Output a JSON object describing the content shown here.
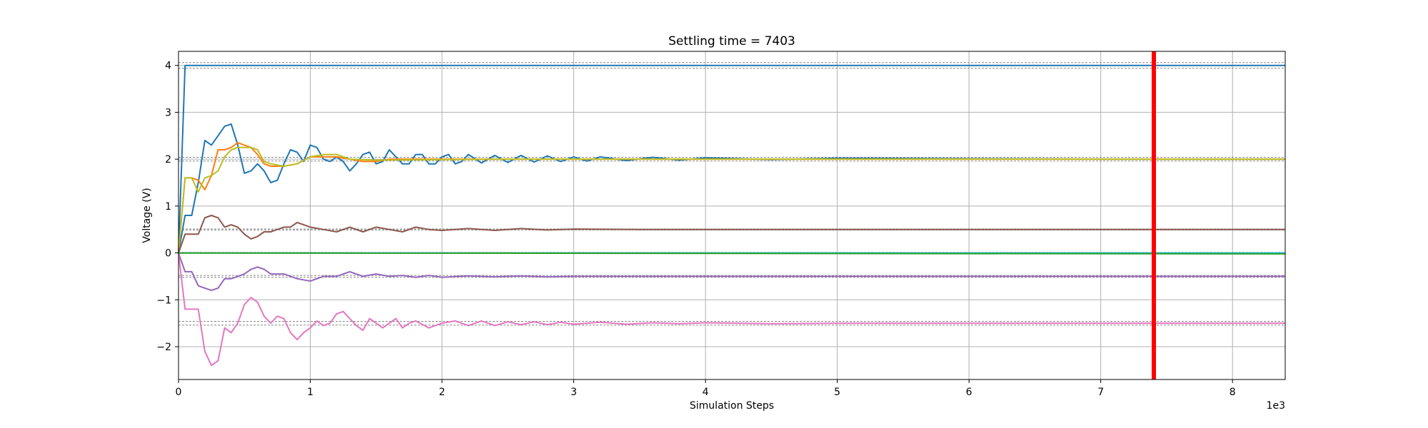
{
  "chart_data": {
    "type": "line",
    "title": "Settling time = 7403",
    "xlabel": "Simulation Steps",
    "ylabel": "Voltage (V)",
    "x_offset_label": "1e3",
    "xlim": [
      0,
      8.4
    ],
    "ylim": [
      -2.7,
      4.3
    ],
    "xticks": [
      0,
      1,
      2,
      3,
      4,
      5,
      6,
      7,
      8
    ],
    "yticks": [
      -2,
      -1,
      0,
      1,
      2,
      3,
      4
    ],
    "grid": true,
    "settling_time": 7403,
    "settling_marker_x": 7.403,
    "settling_marker_color": "#ff0000",
    "reference_bands": [
      {
        "center": 4,
        "band": 0.06
      },
      {
        "center": 2,
        "band": 0.04
      },
      {
        "center": 0.5,
        "band": 0.01
      },
      {
        "center": 0,
        "band": 0.01
      },
      {
        "center": -0.5,
        "band": 0.02
      },
      {
        "center": -1.5,
        "band": 0.04
      }
    ],
    "series": [
      {
        "color": "#1f77b4",
        "x": [
          0,
          0.05,
          0.1,
          0.6,
          2,
          8.4
        ],
        "y": [
          0,
          4,
          4,
          4,
          4,
          4
        ]
      },
      {
        "color": "#1f77b4",
        "x": [
          0,
          0.05,
          0.1,
          0.15,
          0.2,
          0.25,
          0.3,
          0.35,
          0.4,
          0.45,
          0.5,
          0.55,
          0.6,
          0.65,
          0.7,
          0.75,
          0.8,
          0.85,
          0.9,
          0.95,
          1.0,
          1.05,
          1.1,
          1.15,
          1.2,
          1.25,
          1.3,
          1.35,
          1.4,
          1.45,
          1.5,
          1.55,
          1.6,
          1.65,
          1.7,
          1.75,
          1.8,
          1.85,
          1.9,
          1.95,
          2.0,
          2.05,
          2.1,
          2.15,
          2.2,
          2.3,
          2.4,
          2.5,
          2.6,
          2.7,
          2.8,
          2.9,
          3.0,
          3.1,
          3.2,
          3.4,
          3.6,
          3.8,
          4.0,
          4.5,
          5.0,
          6.0,
          7.0,
          8.4
        ],
        "y": [
          0,
          0.8,
          0.8,
          1.5,
          2.4,
          2.3,
          2.5,
          2.7,
          2.75,
          2.3,
          1.7,
          1.75,
          1.9,
          1.75,
          1.5,
          1.55,
          1.9,
          2.2,
          2.15,
          1.95,
          2.3,
          2.25,
          2.0,
          1.95,
          2.05,
          1.95,
          1.75,
          1.9,
          2.1,
          2.15,
          1.9,
          1.95,
          2.2,
          2.05,
          1.9,
          1.9,
          2.1,
          2.1,
          1.9,
          1.9,
          2.05,
          2.1,
          1.9,
          1.95,
          2.1,
          1.92,
          2.08,
          1.93,
          2.08,
          1.94,
          2.07,
          1.95,
          2.05,
          1.96,
          2.05,
          1.97,
          2.04,
          1.98,
          2.03,
          1.99,
          2.02,
          2.01,
          2.0,
          2.0
        ]
      },
      {
        "color": "#ff7f0e",
        "x": [
          0,
          0.05,
          0.1,
          0.15,
          0.2,
          0.25,
          0.3,
          0.35,
          0.4,
          0.45,
          0.5,
          0.55,
          0.6,
          0.65,
          0.7,
          0.8,
          0.9,
          1.0,
          1.05,
          1.1,
          1.2,
          1.3,
          1.4,
          1.5,
          1.6,
          1.8,
          2.0,
          2.5,
          3.0,
          4.0,
          5.0,
          6.0,
          7.0,
          8.4
        ],
        "y": [
          0,
          1.6,
          1.6,
          1.55,
          1.35,
          1.65,
          2.2,
          2.2,
          2.25,
          2.35,
          2.3,
          2.25,
          2.1,
          1.9,
          1.85,
          1.85,
          1.9,
          2.05,
          2.05,
          2.05,
          2.05,
          2.0,
          1.95,
          1.95,
          2.0,
          2.0,
          2.0,
          2.0,
          2.0,
          2.0,
          2.0,
          2.0,
          2.0,
          2.0
        ]
      },
      {
        "color": "#bcbd22",
        "x": [
          0,
          0.05,
          0.1,
          0.15,
          0.2,
          0.25,
          0.3,
          0.35,
          0.4,
          0.45,
          0.5,
          0.55,
          0.6,
          0.65,
          0.7,
          0.8,
          0.9,
          1.0,
          1.1,
          1.2,
          1.3,
          1.5,
          2.0,
          2.5,
          3.0,
          4.0,
          5.0,
          6.0,
          7.0,
          8.4
        ],
        "y": [
          0,
          1.6,
          1.6,
          1.3,
          1.6,
          1.65,
          1.75,
          2.05,
          2.2,
          2.25,
          2.25,
          2.25,
          2.2,
          1.95,
          1.9,
          1.85,
          1.9,
          2.05,
          2.1,
          2.1,
          2.0,
          1.98,
          1.99,
          2.0,
          2.0,
          2.0,
          2.0,
          2.0,
          2.0,
          2.0
        ]
      },
      {
        "color": "#8c564b",
        "x": [
          0,
          0.05,
          0.1,
          0.15,
          0.2,
          0.25,
          0.3,
          0.35,
          0.4,
          0.45,
          0.5,
          0.55,
          0.6,
          0.65,
          0.7,
          0.75,
          0.8,
          0.85,
          0.9,
          0.95,
          1.0,
          1.1,
          1.2,
          1.3,
          1.4,
          1.5,
          1.6,
          1.7,
          1.8,
          1.9,
          2.0,
          2.2,
          2.4,
          2.6,
          2.8,
          3.0,
          3.5,
          4.0,
          5.0,
          6.0,
          7.0,
          8.4
        ],
        "y": [
          0,
          0.4,
          0.4,
          0.4,
          0.75,
          0.8,
          0.75,
          0.55,
          0.6,
          0.55,
          0.4,
          0.3,
          0.35,
          0.45,
          0.45,
          0.5,
          0.55,
          0.55,
          0.65,
          0.6,
          0.55,
          0.5,
          0.45,
          0.55,
          0.45,
          0.55,
          0.5,
          0.45,
          0.55,
          0.5,
          0.48,
          0.52,
          0.48,
          0.52,
          0.49,
          0.51,
          0.5,
          0.5,
          0.5,
          0.5,
          0.5,
          0.5
        ]
      },
      {
        "color": "#9467bd",
        "x": [
          0,
          0.05,
          0.1,
          0.15,
          0.2,
          0.25,
          0.3,
          0.35,
          0.4,
          0.45,
          0.5,
          0.55,
          0.6,
          0.65,
          0.7,
          0.8,
          0.9,
          1.0,
          1.1,
          1.2,
          1.3,
          1.4,
          1.5,
          1.6,
          1.7,
          1.8,
          1.9,
          2.0,
          2.2,
          2.4,
          2.6,
          2.8,
          3.0,
          3.5,
          4.0,
          5.0,
          6.0,
          7.0,
          8.4
        ],
        "y": [
          0,
          -0.4,
          -0.4,
          -0.7,
          -0.75,
          -0.8,
          -0.75,
          -0.55,
          -0.55,
          -0.5,
          -0.45,
          -0.35,
          -0.3,
          -0.35,
          -0.45,
          -0.45,
          -0.55,
          -0.6,
          -0.5,
          -0.5,
          -0.4,
          -0.5,
          -0.45,
          -0.5,
          -0.48,
          -0.52,
          -0.48,
          -0.52,
          -0.49,
          -0.51,
          -0.49,
          -0.51,
          -0.5,
          -0.5,
          -0.5,
          -0.5,
          -0.5,
          -0.5,
          -0.5
        ]
      },
      {
        "color": "#e377c2",
        "x": [
          0,
          0.05,
          0.1,
          0.15,
          0.2,
          0.25,
          0.3,
          0.35,
          0.4,
          0.45,
          0.5,
          0.55,
          0.6,
          0.65,
          0.7,
          0.75,
          0.8,
          0.85,
          0.9,
          0.95,
          1.0,
          1.05,
          1.1,
          1.15,
          1.2,
          1.25,
          1.3,
          1.35,
          1.4,
          1.45,
          1.5,
          1.55,
          1.6,
          1.65,
          1.7,
          1.75,
          1.8,
          1.9,
          2.0,
          2.1,
          2.2,
          2.3,
          2.4,
          2.5,
          2.6,
          2.7,
          2.8,
          2.9,
          3.0,
          3.2,
          3.4,
          3.6,
          3.8,
          4.0,
          4.5,
          5.0,
          6.0,
          7.0,
          8.4
        ],
        "y": [
          0,
          -1.2,
          -1.2,
          -1.2,
          -2.1,
          -2.4,
          -2.3,
          -1.6,
          -1.7,
          -1.5,
          -1.1,
          -0.95,
          -1.05,
          -1.35,
          -1.5,
          -1.35,
          -1.4,
          -1.7,
          -1.85,
          -1.7,
          -1.6,
          -1.45,
          -1.55,
          -1.5,
          -1.3,
          -1.25,
          -1.4,
          -1.55,
          -1.65,
          -1.4,
          -1.5,
          -1.6,
          -1.5,
          -1.4,
          -1.6,
          -1.5,
          -1.45,
          -1.6,
          -1.5,
          -1.45,
          -1.55,
          -1.45,
          -1.55,
          -1.47,
          -1.53,
          -1.47,
          -1.53,
          -1.48,
          -1.52,
          -1.48,
          -1.52,
          -1.49,
          -1.51,
          -1.49,
          -1.51,
          -1.5,
          -1.5,
          -1.5,
          -1.5
        ]
      },
      {
        "color": "#17becf",
        "x": [
          0,
          8.4
        ],
        "y": [
          0,
          0
        ]
      },
      {
        "color": "#2ca02c",
        "x": [
          0,
          8.4
        ],
        "y": [
          0,
          -0.02
        ]
      }
    ]
  }
}
